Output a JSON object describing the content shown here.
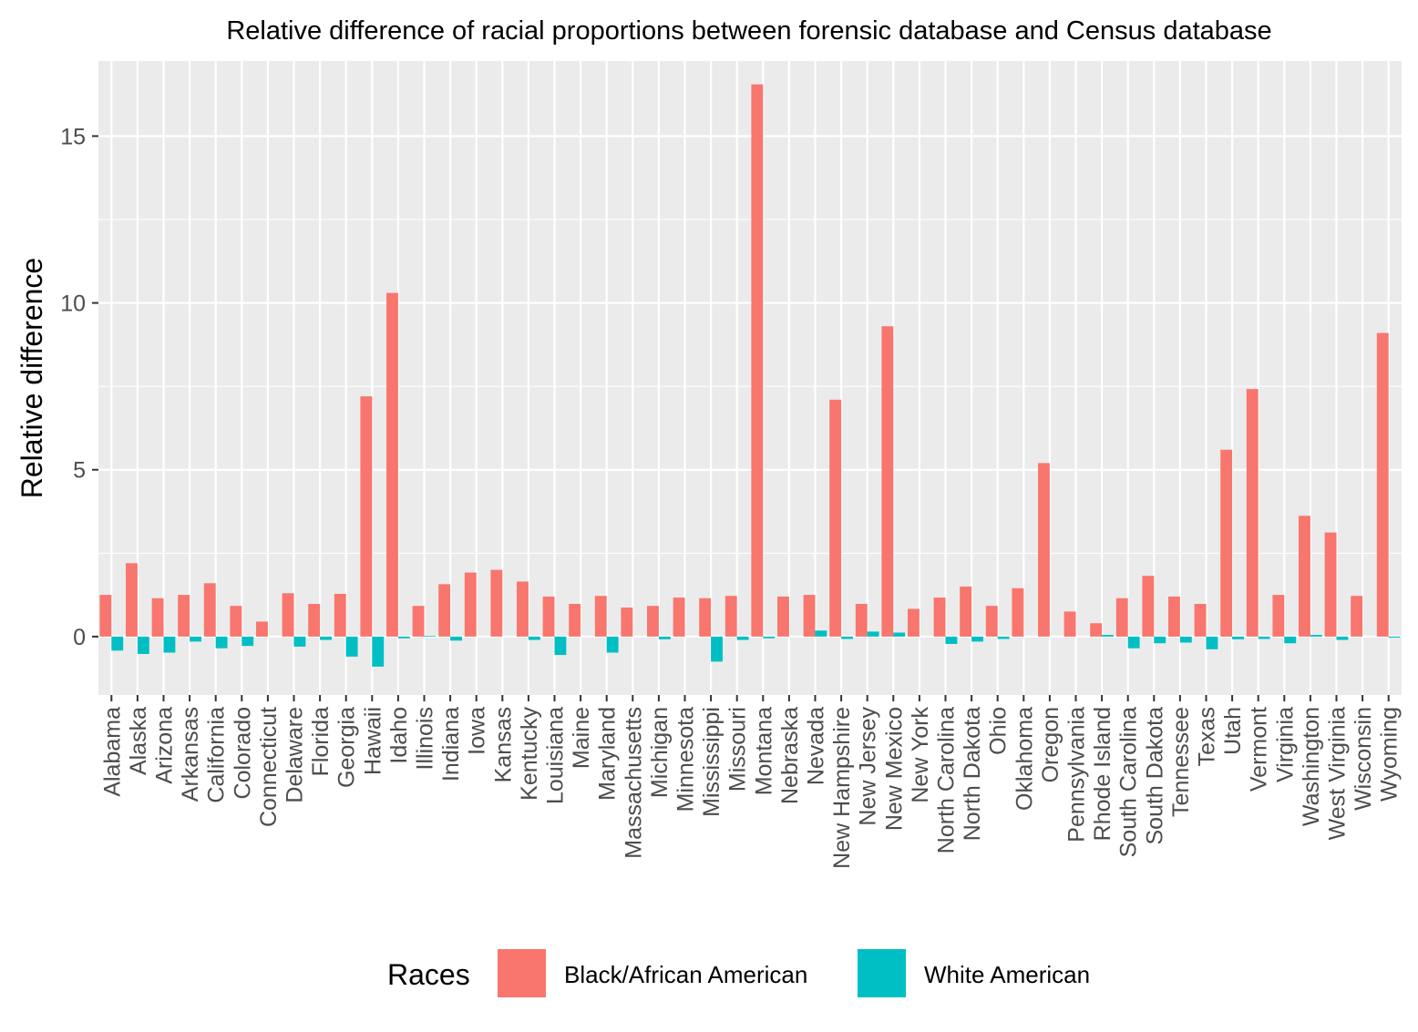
{
  "chart_data": {
    "type": "bar",
    "title": "Relative difference of racial proportions between forensic database and Census database",
    "xlabel": "",
    "ylabel": "Relative difference",
    "ylim": [
      -1.75,
      17.25
    ],
    "yticks": [
      0,
      5,
      10,
      15
    ],
    "grid": true,
    "legend": {
      "title": "Races",
      "position": "bottom"
    },
    "categories": [
      "Alabama",
      "Alaska",
      "Arizona",
      "Arkansas",
      "California",
      "Colorado",
      "Connecticut",
      "Delaware",
      "Florida",
      "Georgia",
      "Hawaii",
      "Idaho",
      "Illinois",
      "Indiana",
      "Iowa",
      "Kansas",
      "Kentucky",
      "Louisiana",
      "Maine",
      "Maryland",
      "Massachusetts",
      "Michigan",
      "Minnesota",
      "Mississippi",
      "Missouri",
      "Montana",
      "Nebraska",
      "Nevada",
      "New Hampshire",
      "New Jersey",
      "New Mexico",
      "New York",
      "North Carolina",
      "North Dakota",
      "Ohio",
      "Oklahoma",
      "Oregon",
      "Pennsylvania",
      "Rhode Island",
      "South Carolina",
      "South Dakota",
      "Tennessee",
      "Texas",
      "Utah",
      "Vermont",
      "Virginia",
      "Washington",
      "West Virginia",
      "Wisconsin",
      "Wyoming"
    ],
    "series": [
      {
        "name": "Black/African American",
        "color": "#F8766D",
        "values": [
          1.25,
          2.2,
          1.15,
          1.25,
          1.6,
          0.92,
          0.45,
          1.3,
          0.98,
          1.28,
          7.2,
          10.3,
          0.92,
          1.57,
          1.92,
          2.0,
          1.65,
          1.2,
          0.98,
          1.22,
          0.87,
          0.92,
          1.17,
          1.15,
          1.22,
          16.55,
          1.2,
          1.25,
          7.1,
          0.98,
          9.3,
          0.83,
          1.17,
          1.5,
          0.92,
          1.45,
          5.2,
          0.75,
          0.4,
          1.15,
          1.82,
          1.2,
          0.98,
          5.6,
          7.42,
          1.25,
          3.62,
          3.12,
          1.22,
          9.1
        ]
      },
      {
        "name": "White American",
        "color": "#00BFC4",
        "values": [
          -0.42,
          -0.52,
          -0.48,
          -0.15,
          -0.35,
          -0.28,
          0.0,
          -0.3,
          -0.1,
          -0.6,
          -0.9,
          -0.05,
          0.02,
          -0.12,
          0.0,
          0.0,
          -0.1,
          -0.55,
          0.0,
          -0.48,
          0.0,
          -0.08,
          0.0,
          -0.75,
          -0.1,
          -0.05,
          0.0,
          0.18,
          -0.07,
          0.15,
          0.12,
          0.0,
          -0.22,
          -0.15,
          -0.07,
          0.0,
          0.0,
          0.0,
          0.05,
          -0.35,
          -0.2,
          -0.18,
          -0.38,
          -0.08,
          -0.07,
          -0.2,
          0.05,
          -0.1,
          0.0,
          -0.03
        ]
      }
    ]
  }
}
